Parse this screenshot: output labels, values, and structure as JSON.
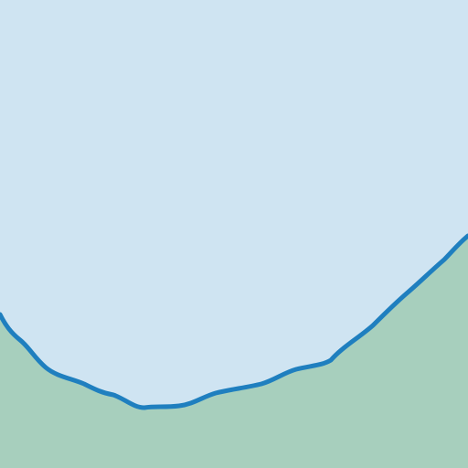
{
  "map": {
    "colors": {
      "water": "#cfe4f2",
      "land": "#a7cfbd",
      "shoreline": "#1f7fbf"
    }
  }
}
